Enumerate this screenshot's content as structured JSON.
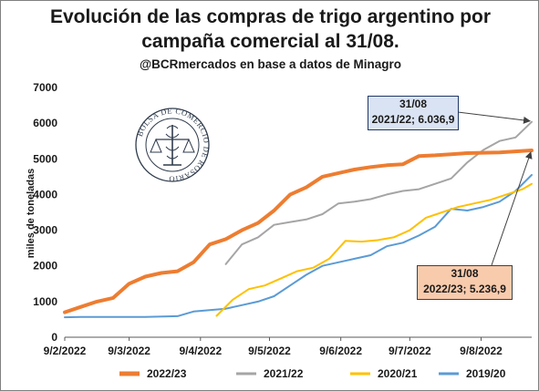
{
  "title": {
    "line1": "Evolución de las compras de trigo argentino por",
    "line2": "campaña comercial al 31/08.",
    "subtitle": "@BCRmercados en base a datos de Minagro"
  },
  "seal_text": "BOLSA DE COMERCIO DE ROSARIO",
  "callouts": {
    "upper": {
      "date": "31/08",
      "text": "2021/22; 6.036,9"
    },
    "lower": {
      "date": "31/08",
      "text": "2022/23; 5.236,9"
    }
  },
  "chart_data": {
    "type": "line",
    "title": "Evolución de las compras de trigo argentino por campaña comercial al 31/08.",
    "subtitle": "@BCRmercados en base a datos de Minagro",
    "ylabel": "miles de toneladas",
    "xlabel": "",
    "ylim": [
      0,
      7000
    ],
    "yticks": [
      0,
      1000,
      2000,
      3000,
      4000,
      5000,
      6000,
      7000
    ],
    "xlim": [
      "2022-02-09",
      "2022-08-31"
    ],
    "xticks": [
      "9/2/2022",
      "9/3/2022",
      "9/4/2022",
      "9/5/2022",
      "9/6/2022",
      "9/7/2022",
      "9/8/2022"
    ],
    "xtick_dates": [
      "2022-02-09",
      "2022-03-09",
      "2022-04-09",
      "2022-05-09",
      "2022-06-09",
      "2022-07-09",
      "2022-08-09"
    ],
    "grid": false,
    "legend": "bottom",
    "series": [
      {
        "name": "2022/23",
        "color": "#ed7d31",
        "width": 4,
        "points": [
          [
            "2022-02-09",
            700
          ],
          [
            "2022-02-16",
            850
          ],
          [
            "2022-02-23",
            1000
          ],
          [
            "2022-03-02",
            1100
          ],
          [
            "2022-03-09",
            1500
          ],
          [
            "2022-03-16",
            1700
          ],
          [
            "2022-03-23",
            1800
          ],
          [
            "2022-03-30",
            1850
          ],
          [
            "2022-04-06",
            2100
          ],
          [
            "2022-04-13",
            2600
          ],
          [
            "2022-04-20",
            2750
          ],
          [
            "2022-04-27",
            3000
          ],
          [
            "2022-05-04",
            3200
          ],
          [
            "2022-05-11",
            3550
          ],
          [
            "2022-05-18",
            4000
          ],
          [
            "2022-05-25",
            4200
          ],
          [
            "2022-06-01",
            4500
          ],
          [
            "2022-06-08",
            4600
          ],
          [
            "2022-06-15",
            4700
          ],
          [
            "2022-06-22",
            4770
          ],
          [
            "2022-06-29",
            4820
          ],
          [
            "2022-07-06",
            4850
          ],
          [
            "2022-07-13",
            5080
          ],
          [
            "2022-07-20",
            5100
          ],
          [
            "2022-07-27",
            5130
          ],
          [
            "2022-08-03",
            5160
          ],
          [
            "2022-08-10",
            5170
          ],
          [
            "2022-08-17",
            5180
          ],
          [
            "2022-08-24",
            5210
          ],
          [
            "2022-08-31",
            5236.9
          ]
        ]
      },
      {
        "name": "2021/22",
        "color": "#a5a5a5",
        "width": 2,
        "points": [
          [
            "2022-04-20",
            2050
          ],
          [
            "2022-04-27",
            2600
          ],
          [
            "2022-05-04",
            2800
          ],
          [
            "2022-05-11",
            3150
          ],
          [
            "2022-05-18",
            3230
          ],
          [
            "2022-05-25",
            3300
          ],
          [
            "2022-06-01",
            3450
          ],
          [
            "2022-06-08",
            3750
          ],
          [
            "2022-06-15",
            3800
          ],
          [
            "2022-06-22",
            3870
          ],
          [
            "2022-06-29",
            4000
          ],
          [
            "2022-07-06",
            4100
          ],
          [
            "2022-07-13",
            4150
          ],
          [
            "2022-07-20",
            4300
          ],
          [
            "2022-07-27",
            4450
          ],
          [
            "2022-08-03",
            4900
          ],
          [
            "2022-08-10",
            5250
          ],
          [
            "2022-08-17",
            5500
          ],
          [
            "2022-08-24",
            5600
          ],
          [
            "2022-08-31",
            6036.9
          ]
        ]
      },
      {
        "name": "2020/21",
        "color": "#ffc000",
        "width": 2,
        "points": [
          [
            "2022-04-16",
            600
          ],
          [
            "2022-04-23",
            1050
          ],
          [
            "2022-04-30",
            1350
          ],
          [
            "2022-05-07",
            1450
          ],
          [
            "2022-05-14",
            1650
          ],
          [
            "2022-05-21",
            1850
          ],
          [
            "2022-05-28",
            1950
          ],
          [
            "2022-06-04",
            2200
          ],
          [
            "2022-06-11",
            2700
          ],
          [
            "2022-06-18",
            2680
          ],
          [
            "2022-06-25",
            2720
          ],
          [
            "2022-07-02",
            2800
          ],
          [
            "2022-07-09",
            3000
          ],
          [
            "2022-07-16",
            3350
          ],
          [
            "2022-07-23",
            3500
          ],
          [
            "2022-07-30",
            3650
          ],
          [
            "2022-08-06",
            3750
          ],
          [
            "2022-08-13",
            3850
          ],
          [
            "2022-08-20",
            4000
          ],
          [
            "2022-08-27",
            4150
          ],
          [
            "2022-08-31",
            4300
          ]
        ]
      },
      {
        "name": "2019/20",
        "color": "#5b9bd5",
        "width": 2,
        "points": [
          [
            "2022-02-09",
            560
          ],
          [
            "2022-02-16",
            570
          ],
          [
            "2022-03-02",
            570
          ],
          [
            "2022-03-16",
            570
          ],
          [
            "2022-03-30",
            590
          ],
          [
            "2022-04-06",
            720
          ],
          [
            "2022-04-13",
            760
          ],
          [
            "2022-04-20",
            800
          ],
          [
            "2022-04-27",
            900
          ],
          [
            "2022-05-04",
            1000
          ],
          [
            "2022-05-11",
            1150
          ],
          [
            "2022-05-18",
            1450
          ],
          [
            "2022-05-25",
            1750
          ],
          [
            "2022-06-01",
            2000
          ],
          [
            "2022-06-08",
            2100
          ],
          [
            "2022-06-15",
            2200
          ],
          [
            "2022-06-22",
            2300
          ],
          [
            "2022-06-29",
            2550
          ],
          [
            "2022-07-06",
            2650
          ],
          [
            "2022-07-13",
            2850
          ],
          [
            "2022-07-20",
            3100
          ],
          [
            "2022-07-27",
            3600
          ],
          [
            "2022-08-03",
            3550
          ],
          [
            "2022-08-10",
            3650
          ],
          [
            "2022-08-17",
            3800
          ],
          [
            "2022-08-24",
            4100
          ],
          [
            "2022-08-31",
            4550
          ]
        ]
      }
    ]
  }
}
